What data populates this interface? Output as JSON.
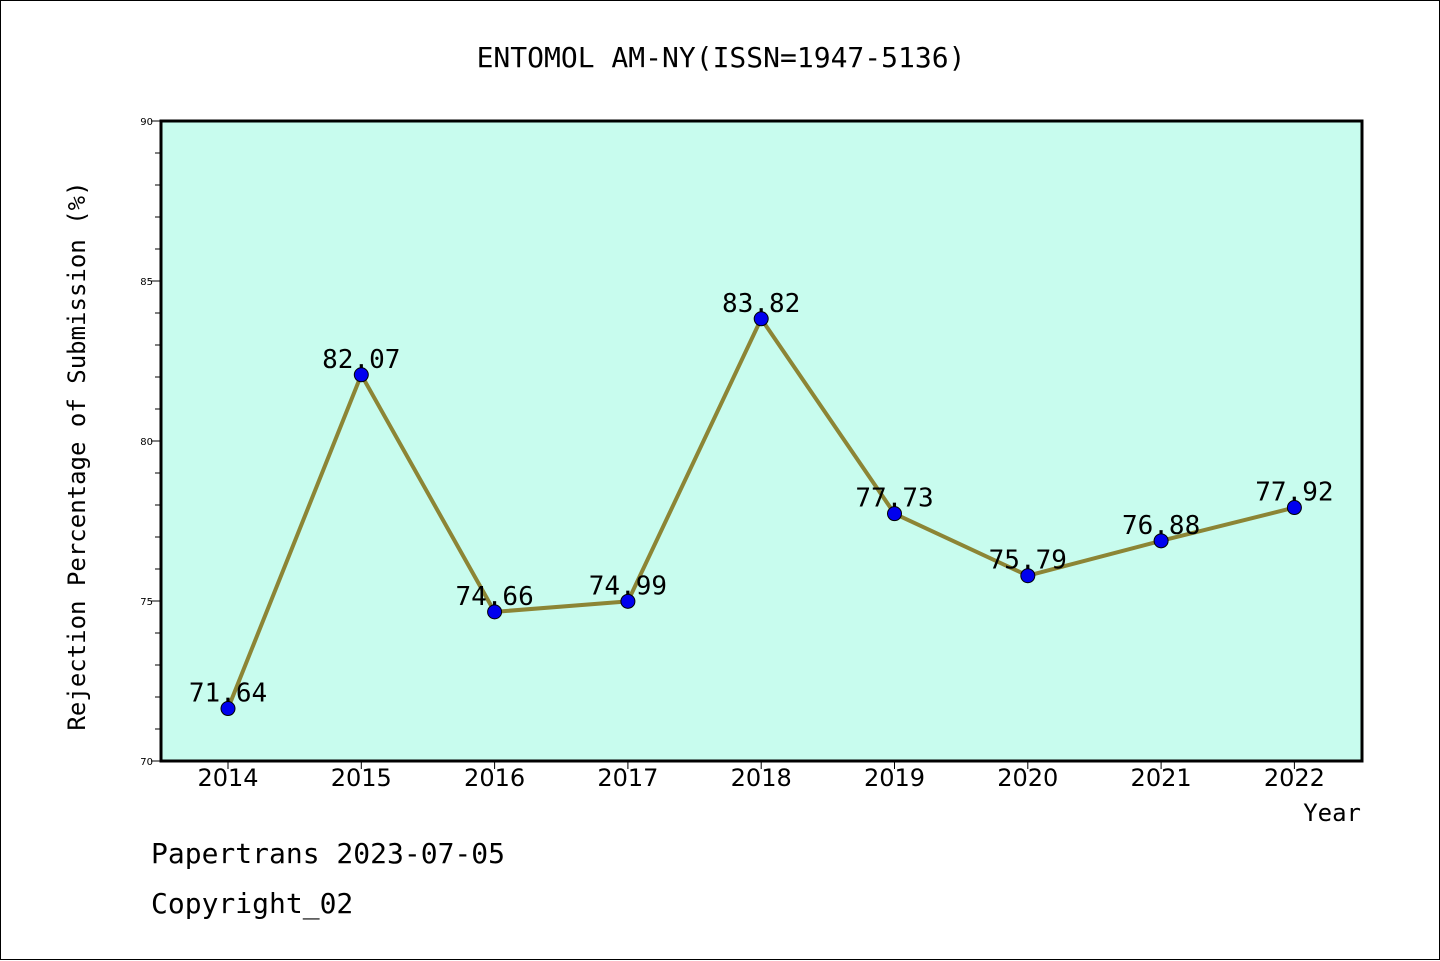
{
  "chart_data": {
    "type": "line",
    "title": "ENTOMOL AM-NY(ISSN=1947-5136)",
    "xlabel": "Year",
    "ylabel": "Rejection Percentage of Submission (%)",
    "x": [
      "2014",
      "2015",
      "2016",
      "2017",
      "2018",
      "2019",
      "2020",
      "2021",
      "2022"
    ],
    "values": [
      71.64,
      82.07,
      74.66,
      74.99,
      83.82,
      77.73,
      75.79,
      76.88,
      77.92
    ],
    "data_labels": [
      "71.64",
      "82.07",
      "74.66",
      "74.99",
      "83.82",
      "77.73",
      "75.79",
      "76.88",
      "77.92"
    ],
    "ylim": [
      70,
      90
    ],
    "yticks": [
      70,
      75,
      80,
      85,
      90
    ],
    "ytick_labels": [
      "70",
      "75",
      "80",
      "85",
      "90"
    ],
    "grid": false,
    "colors": {
      "plot_background": "#c8fcee",
      "line": "#8c8535",
      "marker": "#0000ee"
    }
  },
  "footer": {
    "line1": "Papertrans 2023-07-05",
    "line2": "Copyright_02"
  }
}
